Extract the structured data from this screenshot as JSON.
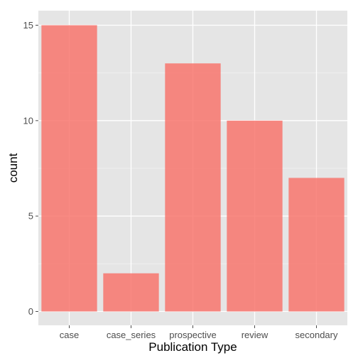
{
  "chart_data": {
    "type": "bar",
    "title": "",
    "xlabel": "Publication Type",
    "ylabel": "count",
    "categories": [
      "case",
      "case_series",
      "prospective",
      "review",
      "secondary"
    ],
    "values": [
      15,
      2,
      13,
      10,
      7
    ],
    "ylim": [
      0,
      15.85
    ],
    "yticks": [
      0,
      5,
      10,
      15
    ],
    "y_tick_labels": [
      "0",
      "5",
      "10",
      "15"
    ],
    "grid": true,
    "bar_color": "#F8766D",
    "panel_background": "#E5E5E5",
    "grid_color": "#FFFFFF",
    "legend": "none"
  }
}
